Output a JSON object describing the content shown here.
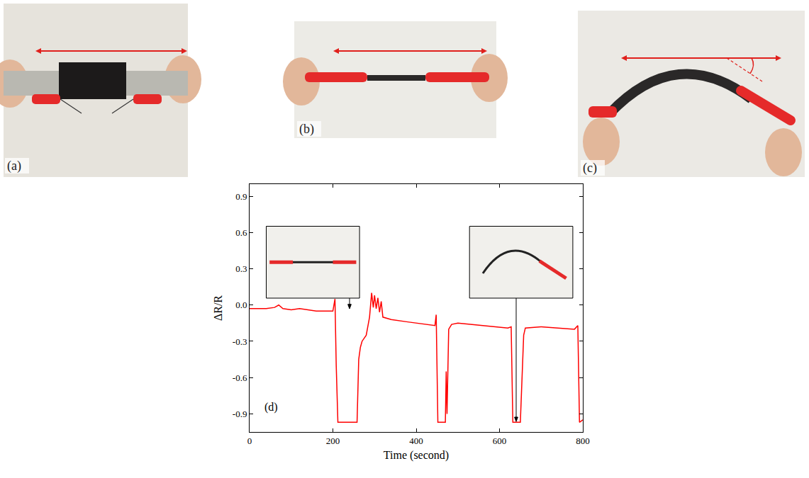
{
  "panels": [
    {
      "label": "(a)"
    },
    {
      "label": "(b)"
    },
    {
      "label": "(c)"
    }
  ],
  "chart_data": {
    "type": "line",
    "panel_label": "(d)",
    "x_label": "Time (second)",
    "y_label": "ΔR/R",
    "xlim": [
      0,
      800
    ],
    "xticks": [
      0,
      200,
      400,
      600,
      800
    ],
    "ylim": [
      -1.05,
      1.0
    ],
    "yticks": [
      -0.9,
      -0.6,
      -0.3,
      {
        "value": 0,
        "label": "0.0"
      },
      0.3,
      0.6,
      0.9
    ],
    "grid": false,
    "series": [
      {
        "color": "#ff0000",
        "x": [
          0,
          20,
          40,
          60,
          70,
          80,
          100,
          120,
          140,
          160,
          180,
          200,
          205,
          208,
          212,
          230,
          258,
          262,
          266,
          270,
          280,
          288,
          293,
          297,
          300,
          304,
          308,
          312,
          316,
          320,
          340,
          380,
          420,
          445,
          448,
          452,
          470,
          472,
          474,
          476,
          478,
          485,
          500,
          560,
          620,
          628,
          632,
          650,
          654,
          658,
          662,
          700,
          740,
          780,
          788,
          792,
          800
        ],
        "values": [
          -0.03,
          -0.03,
          -0.03,
          -0.02,
          0.0,
          -0.03,
          -0.04,
          -0.03,
          -0.04,
          -0.05,
          -0.05,
          -0.05,
          0.05,
          -0.5,
          -0.97,
          -0.97,
          -0.97,
          -0.45,
          -0.35,
          -0.3,
          -0.25,
          -0.1,
          0.1,
          -0.02,
          0.08,
          -0.03,
          0.06,
          -0.06,
          0.03,
          -0.1,
          -0.12,
          -0.14,
          -0.16,
          -0.17,
          -0.08,
          -0.97,
          -0.97,
          -0.55,
          -0.9,
          -0.5,
          -0.2,
          -0.16,
          -0.15,
          -0.17,
          -0.19,
          -0.18,
          -0.97,
          -0.97,
          -0.65,
          -0.25,
          -0.19,
          -0.18,
          -0.19,
          -0.2,
          -0.17,
          -0.97,
          -0.95
        ]
      }
    ]
  }
}
